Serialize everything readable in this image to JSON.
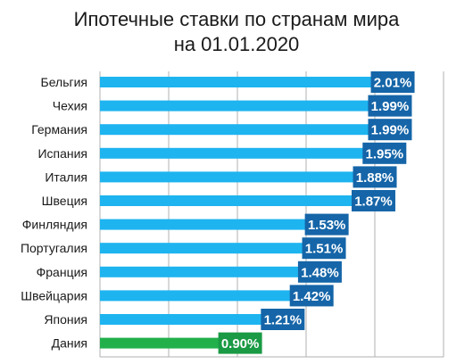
{
  "chart_data": {
    "type": "bar",
    "orientation": "horizontal",
    "title_line1": "Ипотечные ставки по странам мира",
    "title_line2": "на 01.01.2020",
    "categories": [
      "Бельгия",
      "Чехия",
      "Германия",
      "Испания",
      "Италия",
      "Швеция",
      "Финляндия",
      "Португалия",
      "Франция",
      "Швейцария",
      "Япония",
      "Дания"
    ],
    "values": [
      2.01,
      1.99,
      1.99,
      1.95,
      1.88,
      1.87,
      1.53,
      1.51,
      1.48,
      1.42,
      1.21,
      0.9
    ],
    "data_labels": [
      "2.01%",
      "1.99%",
      "1.99%",
      "1.95%",
      "1.88%",
      "1.87%",
      "1.53%",
      "1.51%",
      "1.48%",
      "1.42%",
      "1.21%",
      "0.90%"
    ],
    "xlim": [
      0,
      2.5
    ],
    "grid": true,
    "colors": {
      "bar": "#1eb4f0",
      "highlight_bar": "#22b04b",
      "label_bg": "#1565a8",
      "highlight_label_bg": "#1a9a44",
      "grid": "#b0b0b0"
    },
    "highlight_index": 11
  }
}
